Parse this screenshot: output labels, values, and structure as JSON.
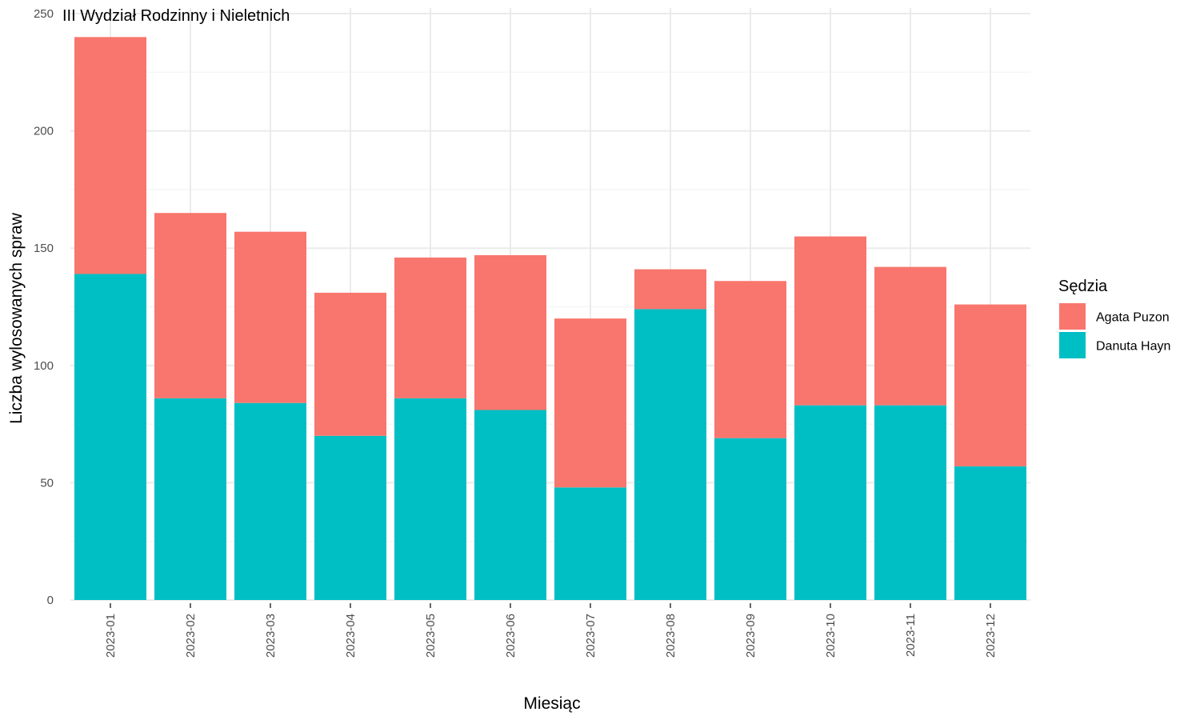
{
  "chart_data": {
    "type": "bar",
    "stacked": true,
    "title": "III Wydział Rodzinny i Nieletnich",
    "xlabel": "Miesiąc",
    "ylabel": "Liczba wylosowanych spraw",
    "ylim": [
      0,
      250
    ],
    "yticks": [
      0,
      50,
      100,
      150,
      200,
      250
    ],
    "grid": true,
    "legend_position": "right",
    "legend_title": "Sędzia",
    "categories": [
      "2023-01",
      "2023-02",
      "2023-03",
      "2023-04",
      "2023-05",
      "2023-06",
      "2023-07",
      "2023-08",
      "2023-09",
      "2023-10",
      "2023-11",
      "2023-12"
    ],
    "series": [
      {
        "name": "Danuta Hayn",
        "color": "#00BFC4",
        "values": [
          139,
          86,
          84,
          70,
          86,
          81,
          48,
          124,
          69,
          83,
          83,
          57
        ]
      },
      {
        "name": "Agata Puzon",
        "color": "#F8766D",
        "values": [
          101,
          79,
          73,
          61,
          60,
          66,
          72,
          17,
          67,
          72,
          59,
          69
        ]
      }
    ],
    "legend_order": [
      "Agata Puzon",
      "Danuta Hayn"
    ]
  }
}
